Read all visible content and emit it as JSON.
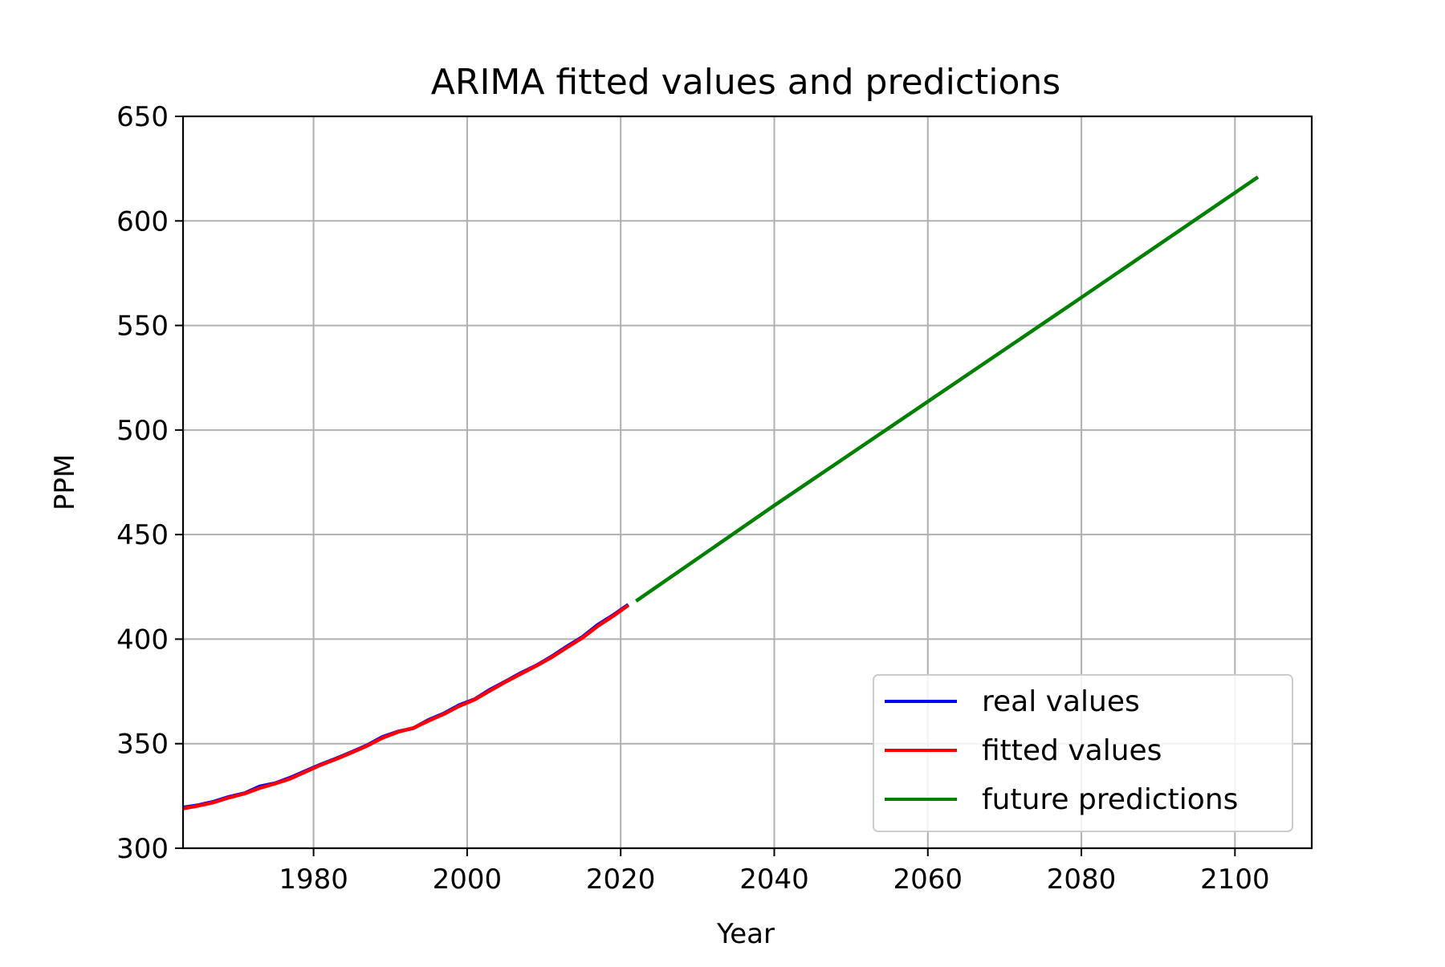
{
  "chart_data": {
    "type": "line",
    "title": "ARIMA fitted values and predictions",
    "xlabel": "Year",
    "ylabel": "PPM",
    "xlim": [
      1963,
      2110
    ],
    "ylim": [
      300,
      650
    ],
    "x_ticks": [
      "1980",
      "2000",
      "2020",
      "2040",
      "2060",
      "2080",
      "2100"
    ],
    "y_ticks": [
      "300",
      "350",
      "400",
      "450",
      "500",
      "550",
      "600",
      "650"
    ],
    "grid": true,
    "legend_position": "lower right",
    "series": [
      {
        "name": "real values",
        "color": "#0000ff",
        "x": [
          1963,
          1965,
          1967,
          1969,
          1971,
          1973,
          1975,
          1977,
          1979,
          1981,
          1983,
          1985,
          1987,
          1989,
          1991,
          1993,
          1995,
          1997,
          1999,
          2001,
          2003,
          2005,
          2007,
          2009,
          2011,
          2013,
          2015,
          2017,
          2019,
          2021
        ],
        "values": [
          319.5,
          320.6,
          322.3,
          324.6,
          326.3,
          329.6,
          331.1,
          333.8,
          337.0,
          340.2,
          343.0,
          346.1,
          349.3,
          353.3,
          355.8,
          357.4,
          361.4,
          364.5,
          368.5,
          371.3,
          375.9,
          379.8,
          383.8,
          387.4,
          391.7,
          396.5,
          401.0,
          406.8,
          411.4,
          416.5
        ]
      },
      {
        "name": "fitted values",
        "color": "#ff0000",
        "x": [
          1963,
          1965,
          1967,
          1969,
          1971,
          1973,
          1975,
          1977,
          1979,
          1981,
          1983,
          1985,
          1987,
          1989,
          1991,
          1993,
          1995,
          1997,
          1999,
          2001,
          2003,
          2005,
          2007,
          2009,
          2011,
          2013,
          2015,
          2017,
          2019,
          2021
        ],
        "values": [
          319.0,
          320.3,
          321.9,
          324.2,
          326.1,
          328.8,
          330.9,
          333.3,
          336.6,
          339.9,
          342.7,
          345.8,
          349.0,
          352.8,
          355.6,
          357.5,
          361.0,
          364.2,
          368.0,
          371.1,
          375.4,
          379.5,
          383.4,
          387.2,
          391.3,
          396.0,
          400.6,
          406.2,
          411.0,
          416.2
        ]
      },
      {
        "name": "future predictions",
        "color": "#008000",
        "x": [
          2022,
          2040,
          2060,
          2080,
          2103
        ],
        "values": [
          418.2,
          463.9,
          513.6,
          563.4,
          621.0
        ]
      }
    ]
  }
}
